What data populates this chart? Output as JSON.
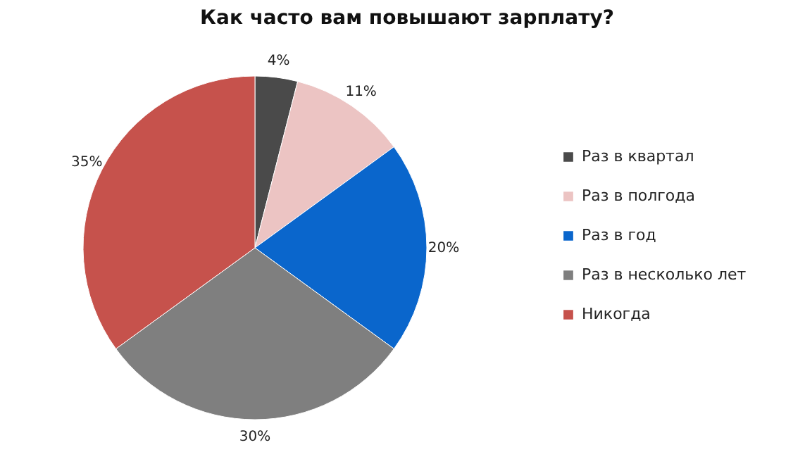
{
  "chart_data": {
    "type": "pie",
    "title": "Как часто вам повышают зарплату?",
    "categories": [
      "Раз в квартал",
      "Раз в полгода",
      "Раз в год",
      "Раз в несколько лет",
      "Никогда"
    ],
    "values": [
      4,
      11,
      20,
      30,
      35
    ],
    "colors": [
      "#4a4a4a",
      "#ecc4c3",
      "#0a66cc",
      "#7f7f7f",
      "#c6524c"
    ],
    "value_labels": [
      "4%",
      "11%",
      "20%",
      "30%",
      "35%"
    ],
    "legend": "right"
  }
}
